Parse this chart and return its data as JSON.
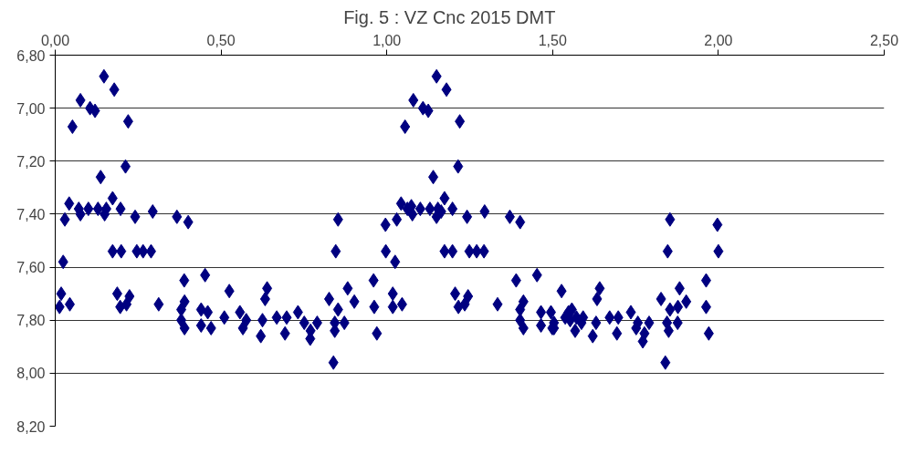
{
  "chart_data": {
    "type": "scatter",
    "title": "Fig. 5  :   VZ Cnc   2015    DMT",
    "x": [
      0.147,
      0.178,
      0.076,
      0.105,
      0.12,
      0.052,
      0.22,
      0.212,
      0.137,
      0.173,
      0.042,
      0.071,
      0.076,
      0.1,
      0.129,
      0.149,
      0.154,
      0.197,
      0.029,
      0.241,
      0.294,
      0.367,
      0.401,
      0.173,
      0.199,
      0.246,
      0.265,
      0.289,
      0.024,
      0.389,
      0.452,
      0.525,
      0.018,
      0.013,
      0.044,
      0.187,
      0.224,
      0.196,
      0.215,
      0.312,
      0.39,
      0.38,
      0.38,
      0.39,
      0.44,
      0.46,
      0.44,
      0.47,
      0.51,
      0.639,
      0.633,
      0.557,
      0.576,
      0.566,
      0.62,
      0.625,
      0.668,
      0.693,
      0.698,
      0.732,
      0.751,
      0.77,
      0.769,
      0.79,
      0.826,
      0.839,
      0.843,
      0.843,
      0.853,
      0.872,
      0.882,
      0.902,
      0.96,
      0.962,
      0.97,
      0.853,
      0.846,
      1.15,
      1.18,
      1.08,
      1.109,
      1.125,
      1.055,
      1.22,
      1.215,
      1.14,
      1.174,
      1.043,
      1.074,
      1.062,
      1.077,
      1.101,
      1.13,
      1.154,
      1.15,
      1.164,
      1.198,
      1.03,
      1.242,
      1.295,
      1.371,
      1.402,
      0.996,
      0.997,
      1.025,
      1.174,
      1.198,
      1.249,
      1.271,
      1.293,
      1.018,
      1.018,
      1.046,
      1.206,
      1.245,
      1.216,
      1.235,
      1.334,
      1.39,
      1.453,
      1.527,
      1.412,
      1.402,
      1.402,
      1.412,
      1.465,
      1.495,
      1.465,
      1.499,
      1.538,
      1.504,
      1.504,
      1.548,
      1.558,
      1.553,
      1.572,
      1.587,
      1.568,
      1.592,
      1.631,
      1.621,
      1.634,
      1.642,
      1.672,
      1.698,
      1.694,
      1.736,
      1.757,
      1.752,
      1.777,
      1.772,
      1.791,
      1.827,
      1.84,
      1.845,
      1.85,
      1.854,
      1.877,
      1.883,
      1.878,
      1.903,
      1.963,
      1.963,
      1.971,
      1.854,
      1.847,
      1.997,
      2.0
    ],
    "values": [
      6.88,
      6.93,
      6.97,
      7.0,
      7.01,
      7.07,
      7.05,
      7.22,
      7.26,
      7.34,
      7.36,
      7.38,
      7.4,
      7.38,
      7.38,
      7.4,
      7.38,
      7.38,
      7.42,
      7.41,
      7.39,
      7.41,
      7.43,
      7.54,
      7.54,
      7.54,
      7.54,
      7.54,
      7.58,
      7.65,
      7.63,
      7.69,
      7.7,
      7.75,
      7.74,
      7.7,
      7.71,
      7.75,
      7.74,
      7.74,
      7.73,
      7.76,
      7.8,
      7.83,
      7.76,
      7.77,
      7.82,
      7.83,
      7.79,
      7.68,
      7.72,
      7.77,
      7.8,
      7.83,
      7.86,
      7.8,
      7.79,
      7.85,
      7.79,
      7.77,
      7.81,
      7.84,
      7.87,
      7.81,
      7.72,
      7.96,
      7.81,
      7.84,
      7.76,
      7.81,
      7.68,
      7.73,
      7.65,
      7.75,
      7.85,
      7.42,
      7.54,
      6.88,
      6.93,
      6.97,
      7.0,
      7.01,
      7.07,
      7.05,
      7.22,
      7.26,
      7.34,
      7.36,
      7.37,
      7.38,
      7.4,
      7.38,
      7.38,
      7.38,
      7.41,
      7.39,
      7.38,
      7.42,
      7.41,
      7.39,
      7.41,
      7.43,
      7.44,
      7.54,
      7.58,
      7.54,
      7.54,
      7.54,
      7.54,
      7.54,
      7.7,
      7.75,
      7.74,
      7.7,
      7.71,
      7.75,
      7.74,
      7.74,
      7.65,
      7.63,
      7.69,
      7.73,
      7.76,
      7.8,
      7.83,
      7.77,
      7.77,
      7.82,
      7.83,
      7.79,
      7.81,
      7.83,
      7.77,
      7.76,
      7.8,
      7.79,
      7.81,
      7.84,
      7.79,
      7.81,
      7.86,
      7.72,
      7.68,
      7.79,
      7.79,
      7.85,
      7.77,
      7.81,
      7.83,
      7.85,
      7.88,
      7.81,
      7.72,
      7.96,
      7.81,
      7.84,
      7.76,
      7.81,
      7.68,
      7.75,
      7.73,
      7.65,
      7.75,
      7.85,
      7.42,
      7.54,
      7.44,
      7.54
    ],
    "color": "#000080",
    "marker": "diamond",
    "xlim": [
      0,
      2.5
    ],
    "xticks": [
      {
        "value": 0,
        "label": "0,00"
      },
      {
        "value": 0.5,
        "label": "0,50"
      },
      {
        "value": 1,
        "label": "1,00"
      },
      {
        "value": 1.5,
        "label": "1,50"
      },
      {
        "value": 2,
        "label": "2,00"
      },
      {
        "value": 2.5,
        "label": "2,50"
      }
    ],
    "ylim": [
      8.2,
      6.8
    ],
    "yticks": [
      {
        "value": 6.8,
        "label": "6,80"
      },
      {
        "value": 7.0,
        "label": "7,00"
      },
      {
        "value": 7.2,
        "label": "7,20"
      },
      {
        "value": 7.4,
        "label": "7,40"
      },
      {
        "value": 7.6,
        "label": "7,60"
      },
      {
        "value": 7.8,
        "label": "7,80"
      },
      {
        "value": 8.0,
        "label": "8,00"
      },
      {
        "value": 8.2,
        "label": "8,20"
      }
    ],
    "grid": "y"
  }
}
